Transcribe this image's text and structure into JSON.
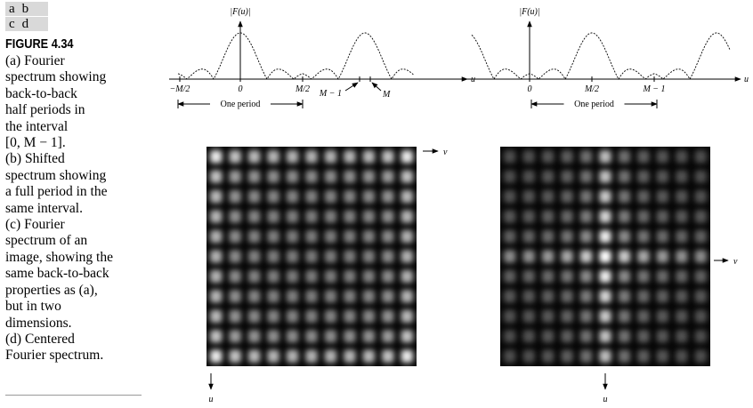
{
  "panel_grid": {
    "rows": [
      [
        "a",
        "b"
      ],
      [
        "c",
        "d"
      ]
    ]
  },
  "figure": {
    "label": "FIGURE 4.34",
    "caption": [
      "(a) Fourier",
      "spectrum showing",
      "back-to-back",
      "half periods in",
      "the interval",
      "[0, M − 1].",
      "(b) Shifted",
      "spectrum showing",
      "a full period in the",
      "same interval.",
      "(c) Fourier",
      "spectrum of an",
      "image, showing the",
      "same back-to-back",
      "properties as (a),",
      "but in two",
      "dimensions.",
      "(d) Centered",
      "Fourier spectrum."
    ]
  },
  "plots": [
    {
      "y_label": "|F(u)|",
      "x_label": "u",
      "tick_labels": [
        "−M/2",
        "0",
        "M/2"
      ],
      "callouts": [
        "M − 1",
        "M"
      ],
      "period_label": "One period"
    },
    {
      "y_label": "|F(u)|",
      "x_label": "u",
      "tick_labels": [
        "0",
        "M/2",
        "M − 1"
      ],
      "period_label": "One period"
    }
  ],
  "images": [
    {
      "axis_labels": [
        "v",
        "u"
      ]
    },
    {
      "axis_labels": [
        "v",
        "u"
      ]
    }
  ]
}
